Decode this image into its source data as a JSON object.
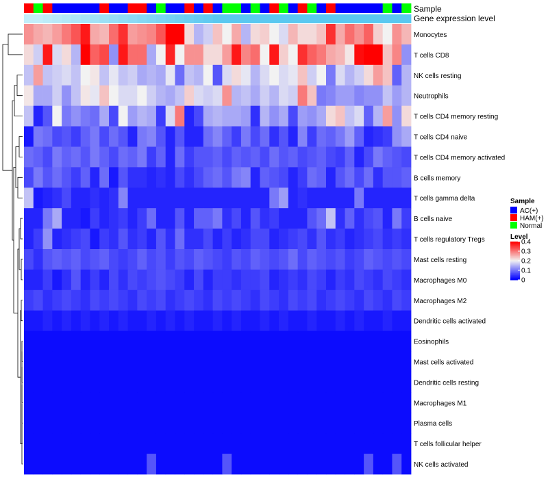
{
  "colors": {
    "ac": "#0000ff",
    "ham": "#ff0000",
    "normal": "#00ff00",
    "low": "#0000ff",
    "mid": "#f2f2f2",
    "high": "#ff0000",
    "track_light": "#c8f0fa",
    "track_dark": "#5ac8f0"
  },
  "chart_data": {
    "type": "heatmap",
    "title": "",
    "annotation_tracks": [
      "Sample",
      "Gene expression level"
    ],
    "rows": [
      "Monocytes",
      "T cells CD8",
      "NK cells resting",
      "Neutrophils",
      "T cells CD4 memory resting",
      "T cells CD4 naive",
      "T cells CD4 memory activated",
      "B cells memory",
      "T cells gamma delta",
      "B cells naive",
      "T cells regulatory  Tregs",
      "Mast cells resting",
      "Macrophages M0",
      "Macrophages M2",
      "Dendritic cells activated",
      "Eosinophils",
      "Mast cells activated",
      "Dendritic cells resting",
      "Macrophages M1",
      "Plasma cells",
      "T cells follicular helper",
      "NK cells activated"
    ],
    "sample_groups": [
      "HAM(+)",
      "Normal",
      "HAM(+)",
      "AC(+)",
      "AC(+)",
      "AC(+)",
      "AC(+)",
      "AC(+)",
      "HAM(+)",
      "AC(+)",
      "AC(+)",
      "HAM(+)",
      "HAM(+)",
      "AC(+)",
      "Normal",
      "AC(+)",
      "AC(+)",
      "HAM(+)",
      "AC(+)",
      "HAM(+)",
      "AC(+)",
      "Normal",
      "Normal",
      "AC(+)",
      "Normal",
      "AC(+)",
      "HAM(+)",
      "Normal",
      "AC(+)",
      "HAM(+)",
      "Normal",
      "AC(+)",
      "HAM(+)",
      "AC(+)",
      "AC(+)",
      "AC(+)",
      "AC(+)",
      "AC(+)",
      "Normal",
      "AC(+)",
      "Normal"
    ],
    "expression_track": [
      0.05,
      0.05,
      0.1,
      0.15,
      0.2,
      0.25,
      0.3,
      0.35,
      0.4,
      0.45,
      0.5,
      0.55,
      0.6,
      0.65,
      0.7,
      0.75,
      0.8,
      0.85,
      0.9,
      0.95,
      1,
      1,
      1,
      1,
      1,
      1,
      1,
      1,
      1,
      1,
      1,
      1,
      1,
      1,
      1,
      1,
      1,
      1,
      1,
      1,
      1
    ],
    "values": [
      [
        0.28,
        0.26,
        0.25,
        0.27,
        0.3,
        0.33,
        0.38,
        0.26,
        0.25,
        0.31,
        0.36,
        0.27,
        0.28,
        0.29,
        0.33,
        0.4,
        0.4,
        0.22,
        0.15,
        0.17,
        0.24,
        0.2,
        0.26,
        0.15,
        0.22,
        0.23,
        0.2,
        0.18,
        0.25,
        0.22,
        0.22,
        0.24,
        0.36,
        0.26,
        0.31,
        0.28,
        0.32,
        0.23,
        0.2,
        0.28,
        0.25
      ],
      [
        0.22,
        0.17,
        0.38,
        0.18,
        0.22,
        0.15,
        0.4,
        0.32,
        0.34,
        0.12,
        0.38,
        0.31,
        0.31,
        0.14,
        0.2,
        0.37,
        0.2,
        0.28,
        0.28,
        0.22,
        0.22,
        0.27,
        0.38,
        0.29,
        0.31,
        0.2,
        0.38,
        0.23,
        0.2,
        0.36,
        0.32,
        0.3,
        0.26,
        0.25,
        0.21,
        0.39,
        0.4,
        0.4,
        0.24,
        0.29,
        0.12
      ],
      [
        0.16,
        0.27,
        0.16,
        0.17,
        0.18,
        0.16,
        0.2,
        0.21,
        0.16,
        0.19,
        0.16,
        0.17,
        0.14,
        0.15,
        0.14,
        0.19,
        0.09,
        0.16,
        0.15,
        0.2,
        0.07,
        0.18,
        0.22,
        0.19,
        0.15,
        0.18,
        0.2,
        0.18,
        0.19,
        0.24,
        0.17,
        0.2,
        0.1,
        0.18,
        0.15,
        0.17,
        0.22,
        0.27,
        0.24,
        0.08,
        0.15
      ],
      [
        0.21,
        0.14,
        0.14,
        0.17,
        0.12,
        0.16,
        0.21,
        0.19,
        0.24,
        0.2,
        0.18,
        0.18,
        0.2,
        0.17,
        0.15,
        0.14,
        0.16,
        0.23,
        0.18,
        0.17,
        0.18,
        0.28,
        0.15,
        0.16,
        0.14,
        0.17,
        0.15,
        0.18,
        0.17,
        0.3,
        0.24,
        0.1,
        0.11,
        0.13,
        0.13,
        0.11,
        0.12,
        0.12,
        0.16,
        0.13,
        0.15
      ],
      [
        0.16,
        0.03,
        0.07,
        0.2,
        0.1,
        0.12,
        0.1,
        0.09,
        0.14,
        0.06,
        0.2,
        0.13,
        0.15,
        0.14,
        0.05,
        0.18,
        0.3,
        0.03,
        0.06,
        0.14,
        0.15,
        0.14,
        0.14,
        0.13,
        0.04,
        0.15,
        0.12,
        0.14,
        0.06,
        0.13,
        0.12,
        0.14,
        0.22,
        0.24,
        0.16,
        0.18,
        0.08,
        0.15,
        0.27,
        0.12,
        0.22
      ],
      [
        0.02,
        0.1,
        0.09,
        0.06,
        0.07,
        0.05,
        0.08,
        0.1,
        0.06,
        0.09,
        0.07,
        0.03,
        0.1,
        0.11,
        0.07,
        0.03,
        0.07,
        0.03,
        0.03,
        0.09,
        0.11,
        0.08,
        0.05,
        0.1,
        0.06,
        0.09,
        0.04,
        0.07,
        0.03,
        0.11,
        0.05,
        0.09,
        0.08,
        0.1,
        0.13,
        0.08,
        0.03,
        0.04,
        0.05,
        0.12,
        0.14
      ],
      [
        0.09,
        0.08,
        0.06,
        0.1,
        0.08,
        0.09,
        0.07,
        0.1,
        0.08,
        0.06,
        0.09,
        0.08,
        0.1,
        0.05,
        0.08,
        0.03,
        0.09,
        0.05,
        0.07,
        0.07,
        0.08,
        0.06,
        0.08,
        0.07,
        0.08,
        0.06,
        0.09,
        0.07,
        0.08,
        0.06,
        0.07,
        0.08,
        0.06,
        0.05,
        0.08,
        0.03,
        0.06,
        0.1,
        0.08,
        0.07,
        0.06
      ],
      [
        0.06,
        0.1,
        0.07,
        0.09,
        0.07,
        0.05,
        0.08,
        0.03,
        0.09,
        0.02,
        0.07,
        0.04,
        0.04,
        0.03,
        0.04,
        0.03,
        0.06,
        0.04,
        0.06,
        0.08,
        0.09,
        0.07,
        0.1,
        0.11,
        0.03,
        0.08,
        0.07,
        0.06,
        0.03,
        0.05,
        0.09,
        0.08,
        0.03,
        0.07,
        0.09,
        0.06,
        0.09,
        0.04,
        0.07,
        0.07,
        0.08
      ],
      [
        0.16,
        0.02,
        0.03,
        0.04,
        0.06,
        0.03,
        0.03,
        0.04,
        0.03,
        0.04,
        0.11,
        0.03,
        0.03,
        0.03,
        0.03,
        0.03,
        0.03,
        0.03,
        0.03,
        0.03,
        0.03,
        0.03,
        0.03,
        0.03,
        0.03,
        0.03,
        0.1,
        0.13,
        0.03,
        0.04,
        0.03,
        0.03,
        0.03,
        0.03,
        0.03,
        0.1,
        0.03,
        0.03,
        0.03,
        0.03,
        0.03
      ],
      [
        0.03,
        0.03,
        0.1,
        0.14,
        0.03,
        0.03,
        0.02,
        0.05,
        0.03,
        0.04,
        0.05,
        0.03,
        0.05,
        0.09,
        0.03,
        0.03,
        0.07,
        0.03,
        0.08,
        0.08,
        0.1,
        0.04,
        0.06,
        0.03,
        0.07,
        0.04,
        0.05,
        0.03,
        0.03,
        0.03,
        0.07,
        0.09,
        0.16,
        0.04,
        0.08,
        0.04,
        0.06,
        0.07,
        0.03,
        0.1,
        0.05
      ],
      [
        0.03,
        0.05,
        0.12,
        0.03,
        0.04,
        0.05,
        0.06,
        0.02,
        0.05,
        0.04,
        0.07,
        0.04,
        0.05,
        0.03,
        0.07,
        0.04,
        0.09,
        0.04,
        0.04,
        0.06,
        0.03,
        0.05,
        0.03,
        0.04,
        0.06,
        0.06,
        0.03,
        0.04,
        0.05,
        0.06,
        0.04,
        0.07,
        0.04,
        0.05,
        0.03,
        0.04,
        0.05,
        0.06,
        0.04,
        0.05,
        0.04
      ],
      [
        0.06,
        0.04,
        0.07,
        0.08,
        0.07,
        0.08,
        0.06,
        0.07,
        0.08,
        0.06,
        0.05,
        0.06,
        0.08,
        0.06,
        0.07,
        0.05,
        0.07,
        0.06,
        0.08,
        0.07,
        0.06,
        0.05,
        0.07,
        0.06,
        0.08,
        0.07,
        0.06,
        0.07,
        0.09,
        0.06,
        0.08,
        0.07,
        0.06,
        0.07,
        0.05,
        0.06,
        0.08,
        0.07,
        0.06,
        0.07,
        0.06
      ],
      [
        0.03,
        0.03,
        0.05,
        0.02,
        0.04,
        0.07,
        0.03,
        0.05,
        0.03,
        0.06,
        0.04,
        0.06,
        0.05,
        0.06,
        0.07,
        0.06,
        0.05,
        0.03,
        0.06,
        0.03,
        0.05,
        0.05,
        0.04,
        0.05,
        0.05,
        0.06,
        0.03,
        0.04,
        0.05,
        0.04,
        0.06,
        0.05,
        0.03,
        0.05,
        0.04,
        0.06,
        0.05,
        0.04,
        0.06,
        0.05,
        0.04
      ],
      [
        0.05,
        0.06,
        0.04,
        0.05,
        0.06,
        0.05,
        0.04,
        0.06,
        0.05,
        0.06,
        0.05,
        0.04,
        0.06,
        0.05,
        0.06,
        0.04,
        0.05,
        0.06,
        0.05,
        0.04,
        0.06,
        0.05,
        0.06,
        0.05,
        0.04,
        0.06,
        0.05,
        0.04,
        0.06,
        0.05,
        0.06,
        0.04,
        0.05,
        0.06,
        0.05,
        0.04,
        0.06,
        0.05,
        0.04,
        0.06,
        0.05
      ],
      [
        0.02,
        0.02,
        0.03,
        0.02,
        0.03,
        0.02,
        0.03,
        0.02,
        0.03,
        0.02,
        0.03,
        0.02,
        0.02,
        0.03,
        0.02,
        0.03,
        0.02,
        0.03,
        0.02,
        0.02,
        0.03,
        0.02,
        0.03,
        0.02,
        0.02,
        0.03,
        0.02,
        0.03,
        0.02,
        0.02,
        0.03,
        0.02,
        0.02,
        0.03,
        0.02,
        0.03,
        0.02,
        0.02,
        0.03,
        0.02,
        0.02
      ],
      [
        0.01,
        0.01,
        0.01,
        0.01,
        0.01,
        0.01,
        0.01,
        0.01,
        0.01,
        0.01,
        0.01,
        0.01,
        0.01,
        0.01,
        0.01,
        0.01,
        0.01,
        0.01,
        0.01,
        0.01,
        0.01,
        0.01,
        0.01,
        0.01,
        0.01,
        0.01,
        0.01,
        0.01,
        0.01,
        0.01,
        0.01,
        0.01,
        0.01,
        0.01,
        0.01,
        0.01,
        0.01,
        0.01,
        0.01,
        0.01,
        0.01
      ],
      [
        0.01,
        0.01,
        0.01,
        0.01,
        0.01,
        0.01,
        0.01,
        0.01,
        0.01,
        0.01,
        0.01,
        0.01,
        0.01,
        0.01,
        0.01,
        0.01,
        0.01,
        0.01,
        0.01,
        0.01,
        0.01,
        0.01,
        0.01,
        0.01,
        0.01,
        0.01,
        0.01,
        0.01,
        0.01,
        0.01,
        0.01,
        0.01,
        0.01,
        0.01,
        0.01,
        0.01,
        0.01,
        0.01,
        0.01,
        0.01,
        0.01
      ],
      [
        0.01,
        0.01,
        0.01,
        0.01,
        0.01,
        0.01,
        0.01,
        0.01,
        0.01,
        0.01,
        0.01,
        0.01,
        0.01,
        0.01,
        0.01,
        0.01,
        0.01,
        0.01,
        0.01,
        0.01,
        0.01,
        0.01,
        0.01,
        0.01,
        0.01,
        0.01,
        0.01,
        0.01,
        0.01,
        0.01,
        0.01,
        0.01,
        0.01,
        0.01,
        0.01,
        0.01,
        0.01,
        0.01,
        0.01,
        0.01,
        0.01
      ],
      [
        0.01,
        0.01,
        0.01,
        0.01,
        0.01,
        0.01,
        0.01,
        0.01,
        0.01,
        0.01,
        0.01,
        0.01,
        0.01,
        0.01,
        0.01,
        0.01,
        0.01,
        0.01,
        0.01,
        0.01,
        0.01,
        0.01,
        0.01,
        0.01,
        0.01,
        0.01,
        0.01,
        0.01,
        0.01,
        0.01,
        0.01,
        0.01,
        0.01,
        0.01,
        0.01,
        0.01,
        0.01,
        0.01,
        0.01,
        0.01,
        0.01
      ],
      [
        0.01,
        0.01,
        0.01,
        0.01,
        0.01,
        0.01,
        0.01,
        0.01,
        0.01,
        0.01,
        0.01,
        0.01,
        0.01,
        0.01,
        0.01,
        0.01,
        0.01,
        0.01,
        0.01,
        0.01,
        0.01,
        0.01,
        0.01,
        0.01,
        0.01,
        0.01,
        0.01,
        0.01,
        0.01,
        0.01,
        0.01,
        0.01,
        0.01,
        0.01,
        0.01,
        0.01,
        0.01,
        0.01,
        0.01,
        0.01,
        0.01
      ],
      [
        0.01,
        0.01,
        0.01,
        0.01,
        0.01,
        0.01,
        0.01,
        0.01,
        0.01,
        0.01,
        0.01,
        0.01,
        0.01,
        0.01,
        0.01,
        0.01,
        0.01,
        0.01,
        0.01,
        0.01,
        0.01,
        0.01,
        0.01,
        0.01,
        0.01,
        0.01,
        0.01,
        0.01,
        0.01,
        0.01,
        0.01,
        0.01,
        0.01,
        0.01,
        0.01,
        0.01,
        0.01,
        0.01,
        0.01,
        0.01,
        0.01
      ],
      [
        0.01,
        0.01,
        0.01,
        0.01,
        0.01,
        0.01,
        0.01,
        0.01,
        0.01,
        0.01,
        0.01,
        0.01,
        0.01,
        0.07,
        0.01,
        0.01,
        0.01,
        0.01,
        0.01,
        0.01,
        0.01,
        0.07,
        0.01,
        0.01,
        0.01,
        0.01,
        0.01,
        0.01,
        0.01,
        0.01,
        0.01,
        0.01,
        0.01,
        0.01,
        0.01,
        0.01,
        0.07,
        0.01,
        0.01,
        0.07,
        0.01
      ]
    ],
    "legend": {
      "sample_title": "Sample",
      "sample_entries": [
        "AC(+)",
        "HAM(+)",
        "Normal"
      ],
      "level_title": "Level",
      "level_ticks": [
        "0.4",
        "0.3",
        "0.2",
        "0.1",
        "0"
      ],
      "level_tick_values": [
        0.4,
        0.3,
        0.2,
        0.1,
        0
      ],
      "range": [
        0,
        0.4
      ],
      "position": "right"
    },
    "dendrogram": "rows"
  }
}
